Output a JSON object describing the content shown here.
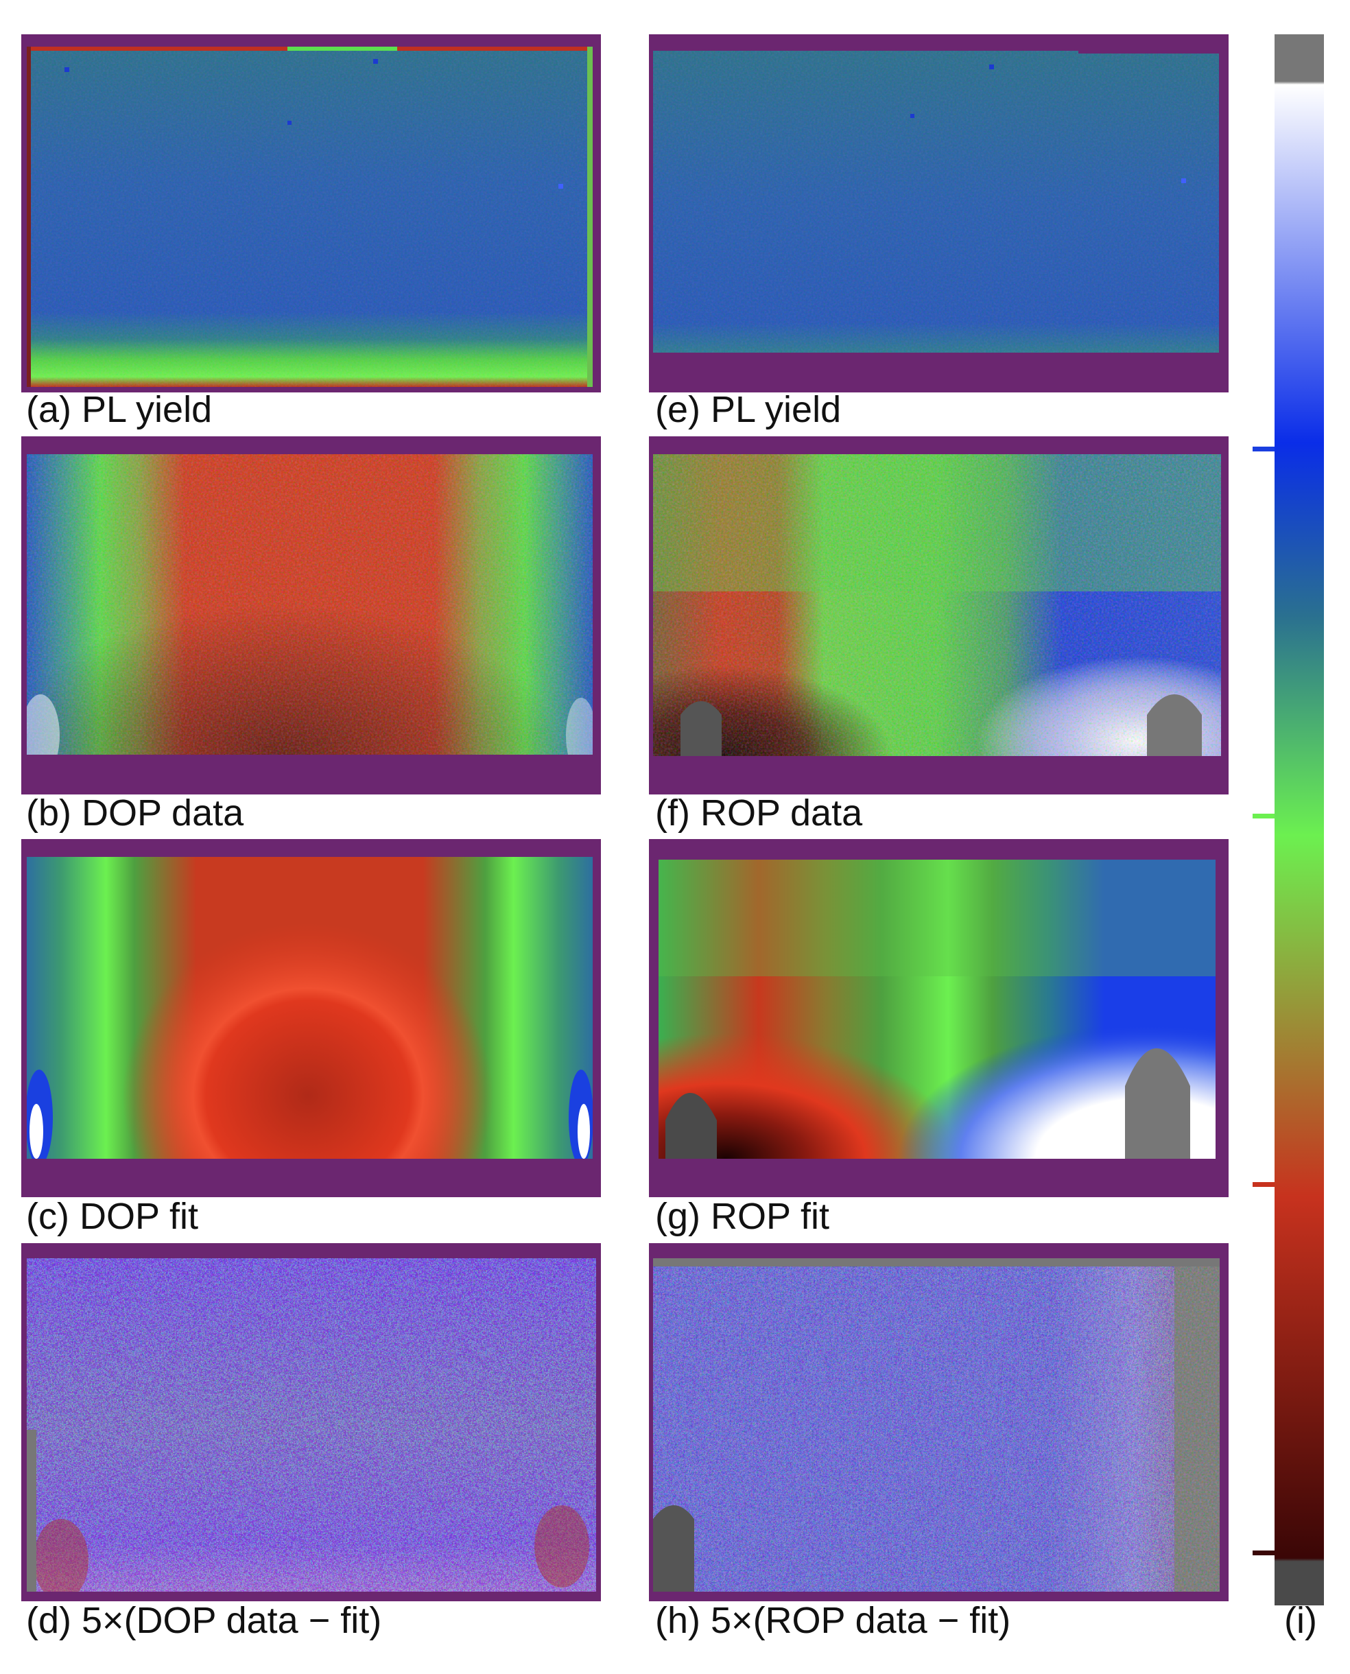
{
  "panels": {
    "a": {
      "caption": "(a) PL yield"
    },
    "b": {
      "caption": "(b) DOP data"
    },
    "c": {
      "caption": "(c) DOP fit"
    },
    "d": {
      "caption": "(d) 5×(DOP data − fit)"
    },
    "e": {
      "caption": "(e) PL yield"
    },
    "f": {
      "caption": "(f) ROP data"
    },
    "g": {
      "caption": "(g) ROP fit"
    },
    "h": {
      "caption": "(h) 5×(ROP data − fit)"
    }
  },
  "colorbar": {
    "label": "(i)",
    "colors": [
      "#777777",
      "#ffffff",
      "#0a2de8",
      "#2a7090",
      "#6cf050",
      "#c7321e",
      "#3a0606",
      "#4a4a4a"
    ],
    "ticks": [
      "#1a3fe0",
      "#6cf050",
      "#c7321e",
      "#3a0606"
    ]
  },
  "colors": {
    "frame": "#6b2670",
    "blue_teal": "#2d63a8",
    "green": "#6cf050",
    "red": "#d8301e",
    "dark": "#3a0808",
    "gray": "#777777"
  }
}
